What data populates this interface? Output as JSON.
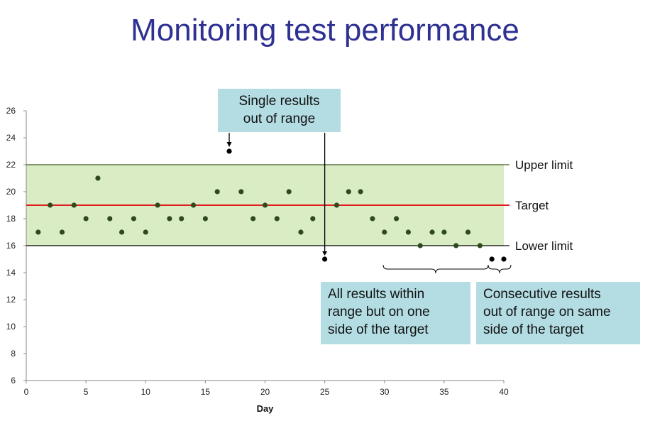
{
  "title": "Monitoring test performance",
  "callouts": {
    "single": [
      "Single results",
      "out of range"
    ],
    "one_side": [
      "All results within",
      "range but on one",
      "side of the target"
    ],
    "consecutive": [
      "Consecutive results",
      "out of range on same",
      "side of the target"
    ]
  },
  "colors": {
    "title": "#2e3192",
    "band": "#d9ecc4",
    "target_line": "#e02020",
    "limit_line": "#000000",
    "points": "#2e4a1c",
    "callout_bg": "#b3dde3"
  },
  "chart_data": {
    "type": "scatter",
    "xlabel": "Day",
    "ylabel": "",
    "xlim": [
      0,
      40
    ],
    "ylim": [
      6,
      26
    ],
    "xticks": [
      0,
      5,
      10,
      15,
      20,
      25,
      30,
      35,
      40
    ],
    "yticks": [
      6,
      8,
      10,
      12,
      14,
      16,
      18,
      20,
      22,
      24,
      26
    ],
    "reference_lines": [
      {
        "label": "Upper limit",
        "y": 22
      },
      {
        "label": "Target",
        "y": 19
      },
      {
        "label": "Lower limit",
        "y": 16
      }
    ],
    "in_range": {
      "x": [
        1,
        2,
        3,
        4,
        5,
        6,
        7,
        8,
        9,
        10,
        11,
        12,
        13,
        14,
        15,
        16,
        18,
        19,
        20,
        21,
        22,
        23,
        24,
        26,
        27,
        28,
        29,
        30,
        31,
        32,
        33,
        34,
        35,
        36,
        37,
        38
      ],
      "y": [
        17,
        19,
        17,
        19,
        18,
        21,
        18,
        17,
        18,
        17,
        19,
        18,
        18,
        19,
        18,
        20,
        20,
        18,
        19,
        18,
        20,
        17,
        18,
        19,
        20,
        20,
        18,
        17,
        18,
        17,
        16,
        17,
        17,
        16,
        17,
        16
      ]
    },
    "out_of_range": {
      "x": [
        17,
        25,
        39,
        40
      ],
      "y": [
        23,
        15,
        15,
        15
      ]
    }
  }
}
